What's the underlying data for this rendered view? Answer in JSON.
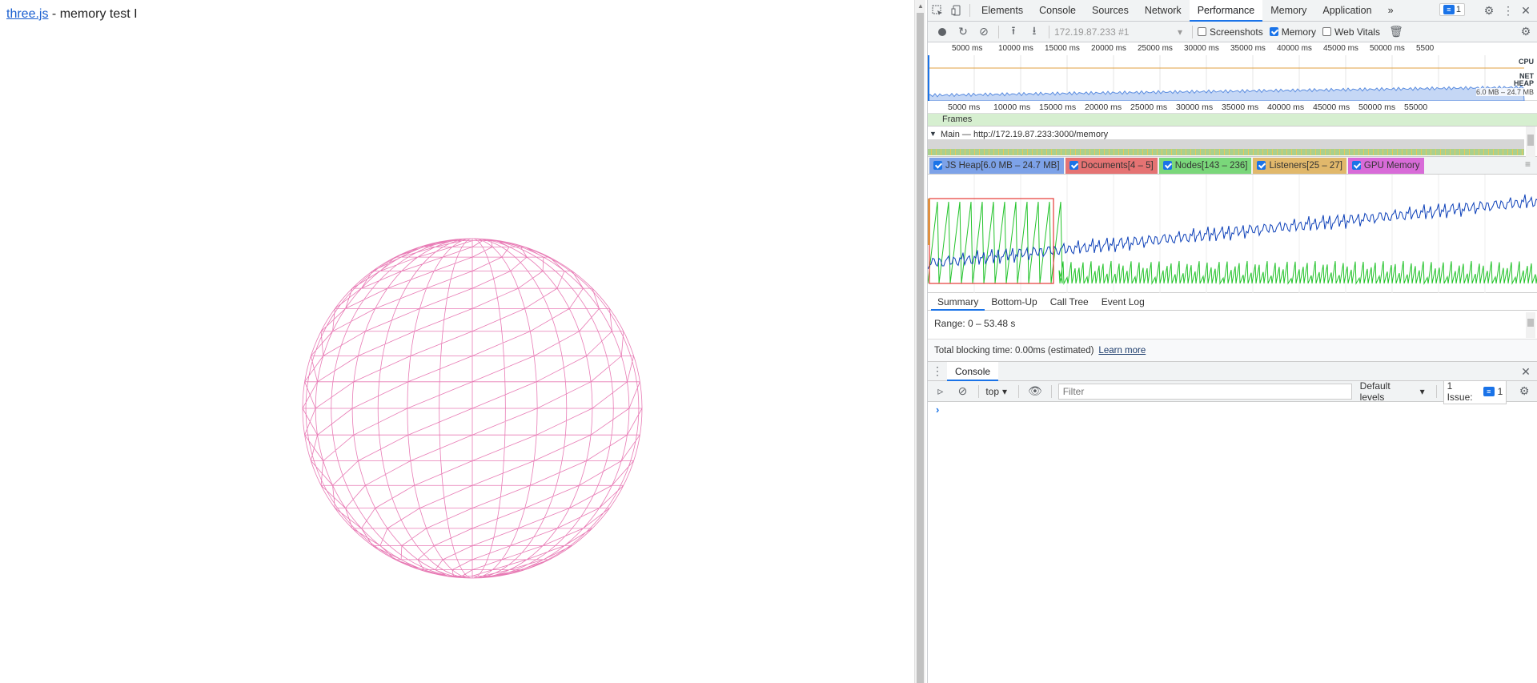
{
  "page": {
    "link_text": "three.js",
    "title_rest": " - memory test I"
  },
  "devtools": {
    "tabs": [
      "Elements",
      "Console",
      "Sources",
      "Network",
      "Performance",
      "Memory",
      "Application"
    ],
    "active_tab": "Performance",
    "more_tabs": "»",
    "issue_count": "1",
    "toolbar": {
      "target": "172.19.87.233 #1",
      "screenshots": "Screenshots",
      "memory": "Memory",
      "web_vitals": "Web Vitals",
      "screenshots_checked": false,
      "memory_checked": true,
      "web_vitals_checked": false
    },
    "overview": {
      "ticks": [
        "5000 ms",
        "10000 ms",
        "15000 ms",
        "20000 ms",
        "25000 ms",
        "30000 ms",
        "35000 ms",
        "40000 ms",
        "45000 ms",
        "50000 ms",
        "5500"
      ],
      "cpu_label": "CPU",
      "net_label": "NET",
      "heap_label": "HEAP",
      "heap_range": "6.0 MB – 24.7 MB"
    },
    "flame": {
      "ticks": [
        "5000 ms",
        "10000 ms",
        "15000 ms",
        "20000 ms",
        "25000 ms",
        "30000 ms",
        "35000 ms",
        "40000 ms",
        "45000 ms",
        "50000 ms",
        "55000"
      ],
      "frames_label": "Frames",
      "main_label": "Main — http://172.19.87.233:3000/memory"
    },
    "counters": [
      {
        "label": "JS Heap[6.0 MB – 24.7 MB]",
        "color": "#7da2e8"
      },
      {
        "label": "Documents[4 – 5]",
        "color": "#e57373"
      },
      {
        "label": "Nodes[143 – 236]",
        "color": "#7ad77a"
      },
      {
        "label": "Listeners[25 – 27]",
        "color": "#e1b86b"
      },
      {
        "label": "GPU Memory",
        "color": "#d86bd8"
      }
    ],
    "bottom_tabs": [
      "Summary",
      "Bottom-Up",
      "Call Tree",
      "Event Log"
    ],
    "range": "Range: 0 – 53.48 s",
    "blocking": "Total blocking time: 0.00ms (estimated)",
    "learn_more": "Learn more",
    "drawer": {
      "tab": "Console",
      "context": "top",
      "filter_placeholder": "Filter",
      "levels": "Default levels",
      "issues": "1 Issue:",
      "issues_count": "1",
      "prompt": "›"
    }
  },
  "colors": {
    "accent": "#1a73e8",
    "sphere": "#e87bb5",
    "heap_line": "#0b3fb8",
    "nodes_line": "#22c32a",
    "selection": "#e53935"
  }
}
